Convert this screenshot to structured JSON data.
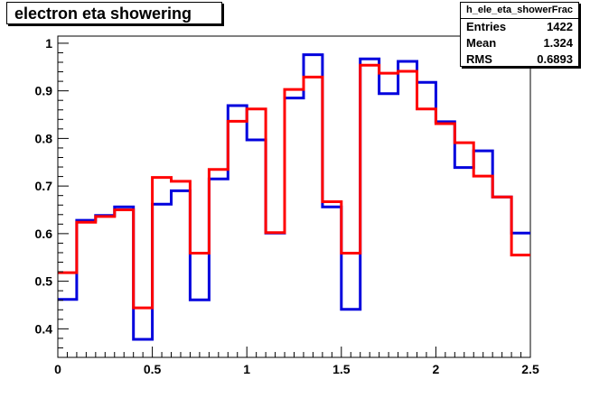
{
  "title": "electron eta showering",
  "stats": {
    "name": "h_ele_eta_showerFrac",
    "rows": [
      {
        "label": "Entries",
        "value": "1422"
      },
      {
        "label": "Mean",
        "value": "1.324"
      },
      {
        "label": "RMS",
        "value": "0.6893"
      }
    ]
  },
  "chart_data": {
    "type": "line",
    "step": true,
    "xlim": [
      0,
      2.5
    ],
    "ylim": [
      0.34,
      1.015
    ],
    "xticks": [
      0,
      0.5,
      1,
      1.5,
      2,
      2.5
    ],
    "xtick_labels": [
      "0",
      "0.5",
      "1",
      "1.5",
      "2",
      "2.5"
    ],
    "yticks": [
      0.4,
      0.5,
      0.6,
      0.7,
      0.8,
      0.9,
      1
    ],
    "ytick_labels": [
      "0.4",
      "0.5",
      "0.6",
      "0.7",
      "0.8",
      "0.9",
      "1"
    ],
    "bin_edges": [
      0,
      0.1,
      0.2,
      0.3,
      0.4,
      0.5,
      0.6,
      0.7,
      0.8,
      0.9,
      1.0,
      1.1,
      1.2,
      1.3,
      1.4,
      1.5,
      1.6,
      1.7,
      1.8,
      1.9,
      2.0,
      2.1,
      2.2,
      2.3,
      2.4,
      2.5
    ],
    "series": [
      {
        "color": "#0000dd",
        "values": [
          0.462,
          0.628,
          0.638,
          0.656,
          0.378,
          0.662,
          0.69,
          0.461,
          0.715,
          0.869,
          0.797,
          0.601,
          0.885,
          0.976,
          0.656,
          0.441,
          0.967,
          0.894,
          0.962,
          0.918,
          0.835,
          0.739,
          0.774,
          0.677,
          0.601
        ]
      },
      {
        "color": "#ff0000",
        "values": [
          0.518,
          0.624,
          0.636,
          0.65,
          0.444,
          0.718,
          0.71,
          0.559,
          0.735,
          0.836,
          0.862,
          0.602,
          0.903,
          0.929,
          0.667,
          0.559,
          0.954,
          0.937,
          0.941,
          0.862,
          0.831,
          0.791,
          0.721,
          0.677,
          0.555
        ]
      }
    ]
  }
}
